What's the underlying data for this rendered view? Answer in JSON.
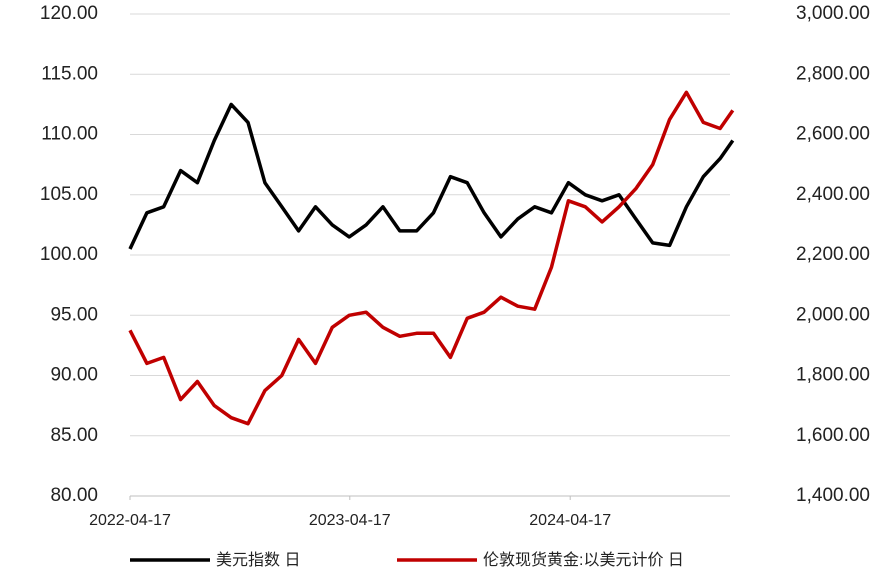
{
  "chart_data": {
    "type": "line",
    "x": [
      "2022-04-17",
      "2022-05-15",
      "2022-06-12",
      "2022-07-10",
      "2022-08-07",
      "2022-09-04",
      "2022-10-02",
      "2022-10-30",
      "2022-11-27",
      "2022-12-25",
      "2023-01-22",
      "2023-02-19",
      "2023-03-19",
      "2023-04-16",
      "2023-05-14",
      "2023-06-11",
      "2023-07-09",
      "2023-08-06",
      "2023-09-03",
      "2023-10-01",
      "2023-10-29",
      "2023-11-26",
      "2023-12-24",
      "2024-01-21",
      "2024-02-18",
      "2024-03-17",
      "2024-04-14",
      "2024-05-12",
      "2024-06-09",
      "2024-07-07",
      "2024-08-04",
      "2024-09-01",
      "2024-09-29",
      "2024-10-27",
      "2024-11-24",
      "2024-12-22",
      "2025-01-12"
    ],
    "xlim": [
      "2022-04-17",
      "2025-01-19"
    ],
    "xticks": [
      "2022-04-17",
      "2023-04-17",
      "2024-04-17"
    ],
    "series": [
      {
        "name": "美元指数 日",
        "color": "#000000",
        "values": [
          100.5,
          103.5,
          104,
          107,
          106,
          109.5,
          112.5,
          111,
          106,
          104,
          102,
          104,
          102.5,
          101.5,
          102.5,
          104,
          102,
          102,
          103.5,
          106.5,
          106,
          103.5,
          101.5,
          103,
          104,
          103.5,
          106,
          105,
          104.5,
          105,
          103,
          101,
          100.8,
          104,
          106.5,
          108,
          109.5
        ]
      },
      {
        "name": "伦敦现货黄金:以美元计价 日",
        "color": "#c00000",
        "axis": "y2",
        "values": [
          1950,
          1840,
          1860,
          1720,
          1780,
          1700,
          1660,
          1640,
          1750,
          1800,
          1920,
          1840,
          1960,
          2000,
          2010,
          1960,
          1930,
          1940,
          1940,
          1860,
          1990,
          2010,
          2060,
          2030,
          2020,
          2160,
          2380,
          2360,
          2310,
          2360,
          2420,
          2500,
          2650,
          2740,
          2640,
          2620,
          2680
        ]
      }
    ],
    "ylim": [
      80,
      120
    ],
    "yticks": [
      {
        "value": 80,
        "label": "80.00"
      },
      {
        "value": 85,
        "label": "85.00"
      },
      {
        "value": 90,
        "label": "90.00"
      },
      {
        "value": 95,
        "label": "95.00"
      },
      {
        "value": 100,
        "label": "100.00"
      },
      {
        "value": 105,
        "label": "105.00"
      },
      {
        "value": 110,
        "label": "110.00"
      },
      {
        "value": 115,
        "label": "115.00"
      },
      {
        "value": 120,
        "label": "120.00"
      }
    ],
    "y2lim": [
      1400,
      3000
    ],
    "y2ticks": [
      {
        "value": 1400,
        "label": "1,400.00"
      },
      {
        "value": 1600,
        "label": "1,600.00"
      },
      {
        "value": 1800,
        "label": "1,800.00"
      },
      {
        "value": 2000,
        "label": "2,000.00"
      },
      {
        "value": 2200,
        "label": "2,200.00"
      },
      {
        "value": 2400,
        "label": "2,400.00"
      },
      {
        "value": 2600,
        "label": "2,600.00"
      },
      {
        "value": 2800,
        "label": "2,800.00"
      },
      {
        "value": 3000,
        "label": "3,000.00"
      }
    ],
    "grid": true
  }
}
